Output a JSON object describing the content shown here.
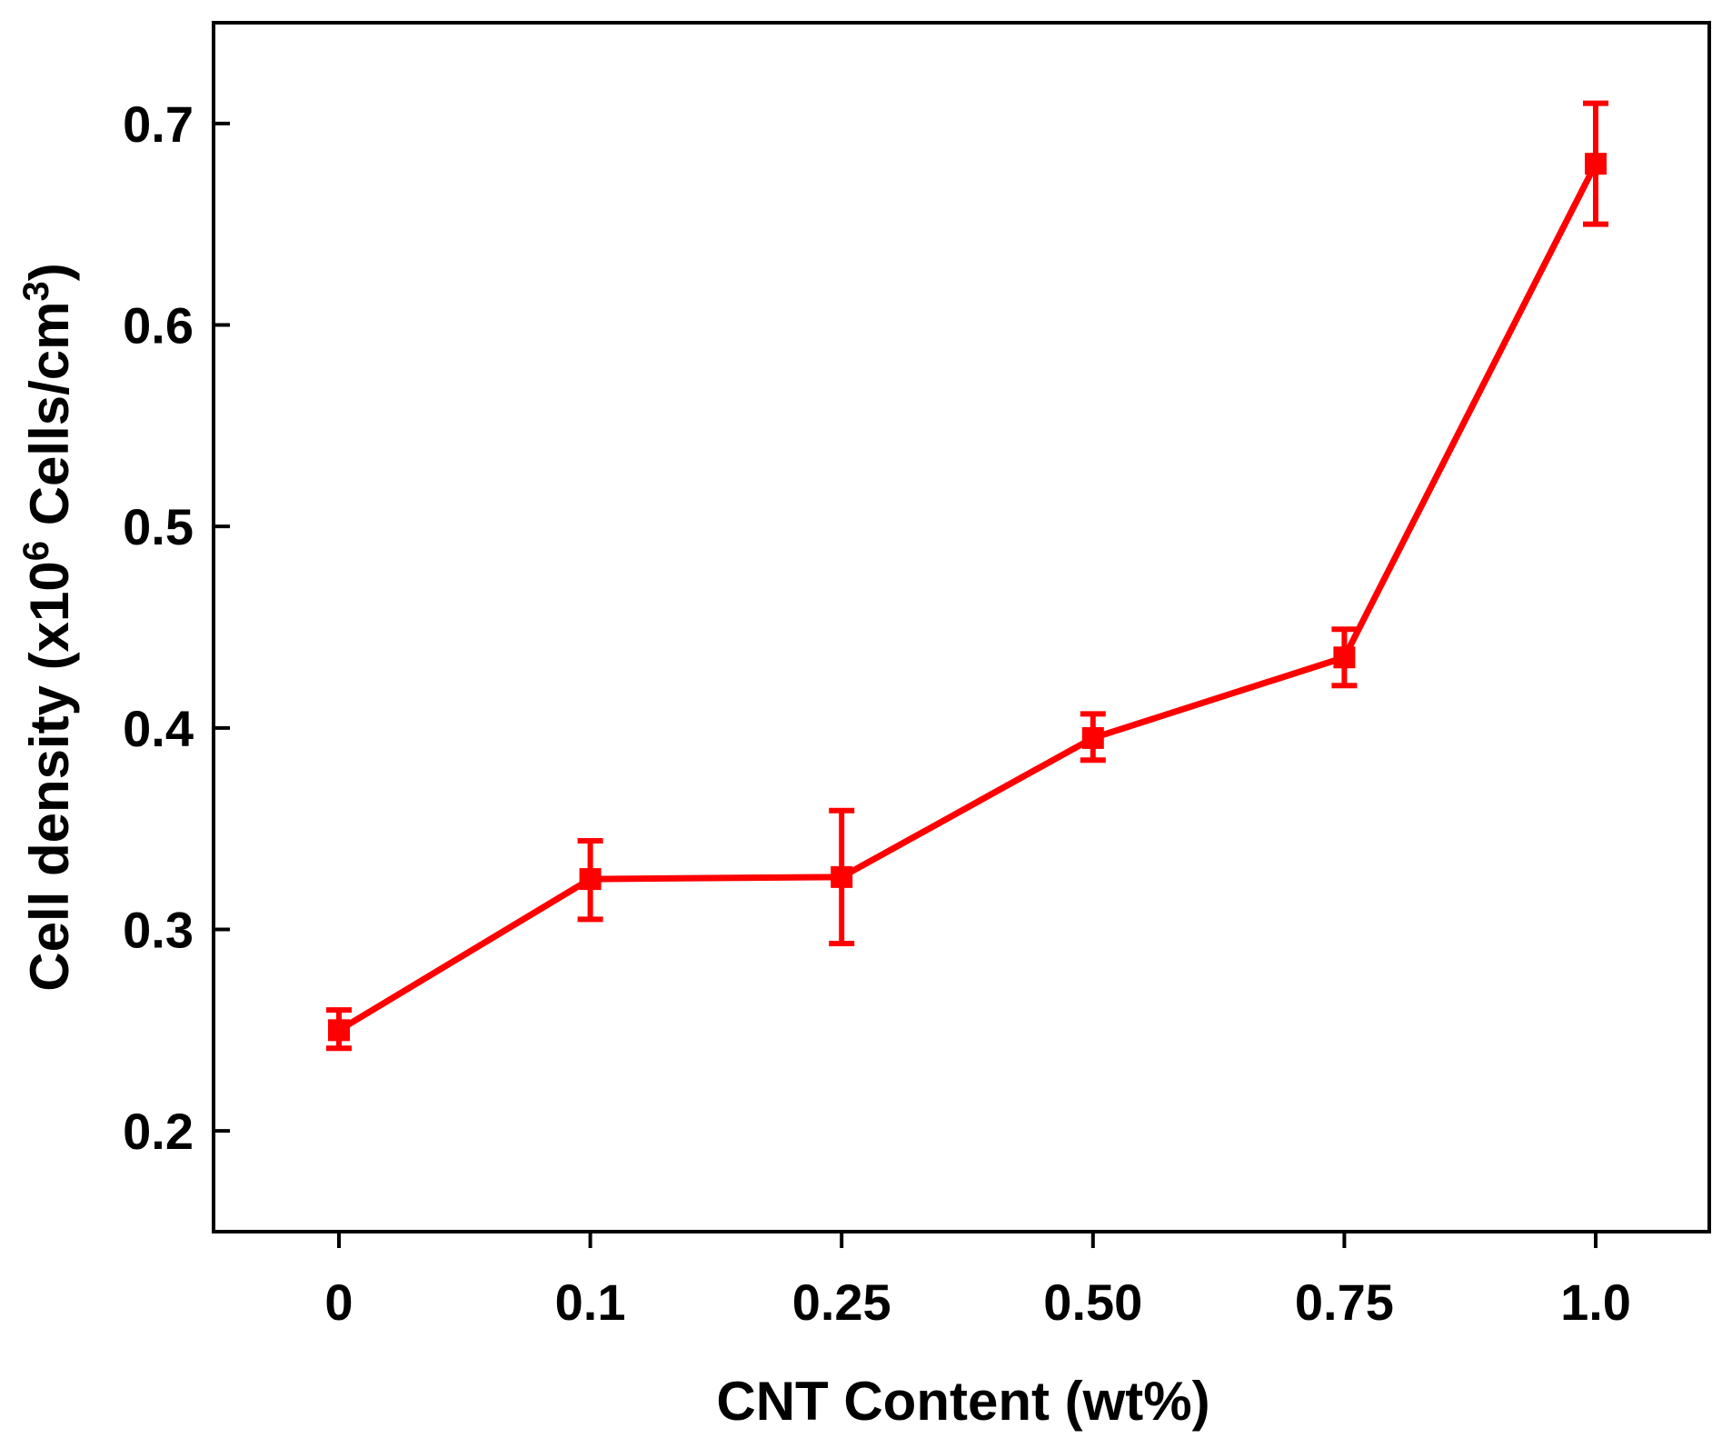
{
  "chart_data": {
    "type": "line",
    "title": "",
    "xlabel": "CNT Content (wt%)",
    "ylabel": {
      "prefix": "Cell density (x10",
      "exp1": "6",
      "mid": " Cells/cm",
      "exp2": "3",
      "suffix": ")"
    },
    "categories": [
      "0",
      "0.1",
      "0.25",
      "0.50",
      "0.75",
      "1.0"
    ],
    "ylim": [
      0.15,
      0.75
    ],
    "yticks": [
      0.2,
      0.3,
      0.4,
      0.5,
      0.6,
      0.7
    ],
    "ytick_labels": [
      "0.2",
      "0.3",
      "0.4",
      "0.5",
      "0.6",
      "0.7"
    ],
    "series": [
      {
        "name": "Cell density",
        "color": "#ff0000",
        "marker": "square",
        "values": [
          0.25,
          0.325,
          0.326,
          0.395,
          0.435,
          0.68
        ],
        "error_low": [
          0.241,
          0.305,
          0.293,
          0.384,
          0.421,
          0.65
        ],
        "error_high": [
          0.26,
          0.344,
          0.359,
          0.407,
          0.449,
          0.71
        ]
      }
    ],
    "grid": false,
    "legend": "none"
  }
}
